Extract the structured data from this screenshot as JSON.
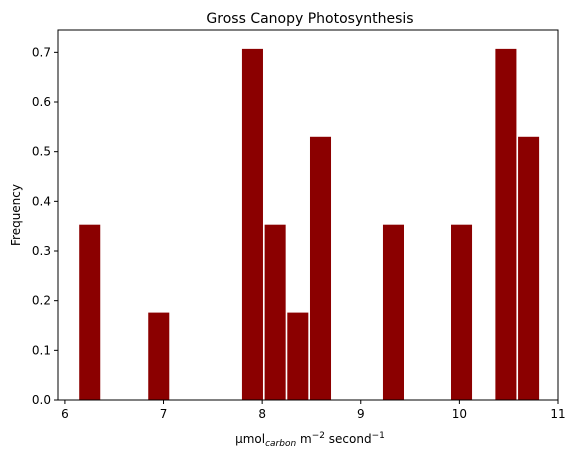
{
  "chart_data": {
    "type": "bar",
    "title": "Gross Canopy Photosynthesis",
    "xlabel": {
      "base": "μmol",
      "sub": "carbon",
      "mid": " m",
      "sup1": "−2",
      "end": " second",
      "sup2": "−1"
    },
    "ylabel": "Frequency",
    "xlim": [
      5.93,
      11.0
    ],
    "ylim": [
      0,
      0.745
    ],
    "bin_width": 0.2235,
    "x_ticks": [
      "6",
      "7",
      "8",
      "9",
      "10",
      "11"
    ],
    "x_tick_values": [
      6,
      7,
      8,
      9,
      10,
      11
    ],
    "y_ticks": [
      "0.0",
      "0.1",
      "0.2",
      "0.3",
      "0.4",
      "0.5",
      "0.6",
      "0.7"
    ],
    "y_tick_values": [
      0.0,
      0.1,
      0.2,
      0.3,
      0.4,
      0.5,
      0.6,
      0.7
    ],
    "bars": [
      {
        "start": 6.14,
        "value": 0.354
      },
      {
        "start": 6.84,
        "value": 0.177
      },
      {
        "start": 7.79,
        "value": 0.708
      },
      {
        "start": 8.02,
        "value": 0.354
      },
      {
        "start": 8.25,
        "value": 0.177
      },
      {
        "start": 8.48,
        "value": 0.531
      },
      {
        "start": 9.22,
        "value": 0.354
      },
      {
        "start": 9.91,
        "value": 0.354
      },
      {
        "start": 10.36,
        "value": 0.708
      },
      {
        "start": 10.59,
        "value": 0.531
      }
    ],
    "bar_color": "#8b0000",
    "edge_color": "#ffffff"
  }
}
